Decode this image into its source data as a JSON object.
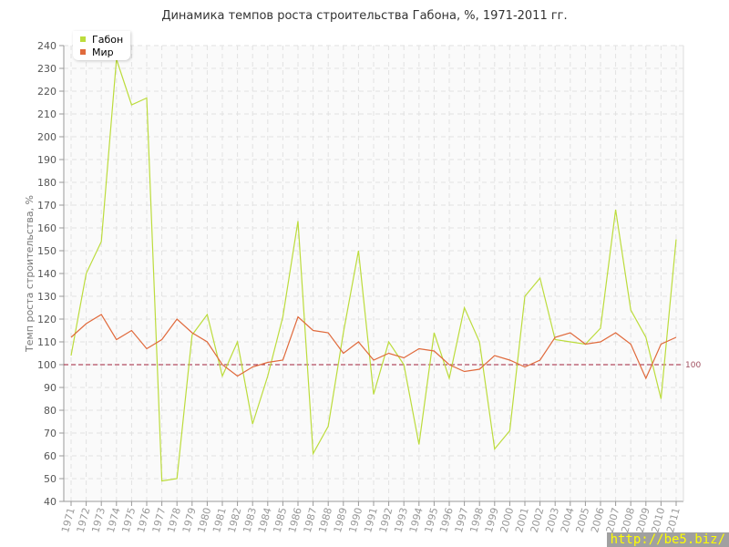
{
  "chart_data": {
    "type": "line",
    "title": "Динамика темпов роста строительства Габона, %, 1971-2011 гг.",
    "ylabel": "Темп роста строительства, %",
    "xlabel": "",
    "ylim": [
      40,
      240
    ],
    "yticks": [
      40,
      50,
      60,
      70,
      80,
      90,
      100,
      110,
      120,
      130,
      140,
      150,
      160,
      170,
      180,
      190,
      200,
      210,
      220,
      230,
      240
    ],
    "grid": true,
    "legend_position": "top-left",
    "reference_line": {
      "value": 100,
      "label": "100",
      "color": "#a0203a"
    },
    "x": [
      1971,
      1972,
      1973,
      1974,
      1975,
      1976,
      1977,
      1978,
      1979,
      1980,
      1981,
      1982,
      1983,
      1984,
      1985,
      1986,
      1987,
      1988,
      1989,
      1990,
      1991,
      1992,
      1993,
      1994,
      1995,
      1996,
      1997,
      1998,
      1999,
      2000,
      2001,
      2002,
      2003,
      2004,
      2005,
      2006,
      2007,
      2008,
      2009,
      2010,
      2011
    ],
    "series": [
      {
        "name": "Габон",
        "color": "#bcdc3c",
        "values": [
          104,
          140,
          154,
          234,
          214,
          217,
          49,
          50,
          113,
          122,
          95,
          110,
          74,
          95,
          121,
          163,
          61,
          73,
          114,
          150,
          87,
          110,
          100,
          65,
          114,
          94,
          125,
          110,
          63,
          71,
          130,
          138,
          111,
          110,
          109,
          116,
          168,
          124,
          112,
          85,
          155
        ]
      },
      {
        "name": "Мир",
        "color": "#e06a3c",
        "values": [
          112,
          118,
          122,
          111,
          115,
          107,
          111,
          120,
          114,
          110,
          100,
          95,
          99,
          101,
          102,
          121,
          115,
          114,
          105,
          110,
          102,
          105,
          103,
          107,
          106,
          100,
          97,
          98,
          104,
          102,
          99,
          102,
          112,
          114,
          109,
          110,
          114,
          109,
          94,
          109,
          112
        ]
      }
    ]
  },
  "watermark": "http://be5.biz/"
}
